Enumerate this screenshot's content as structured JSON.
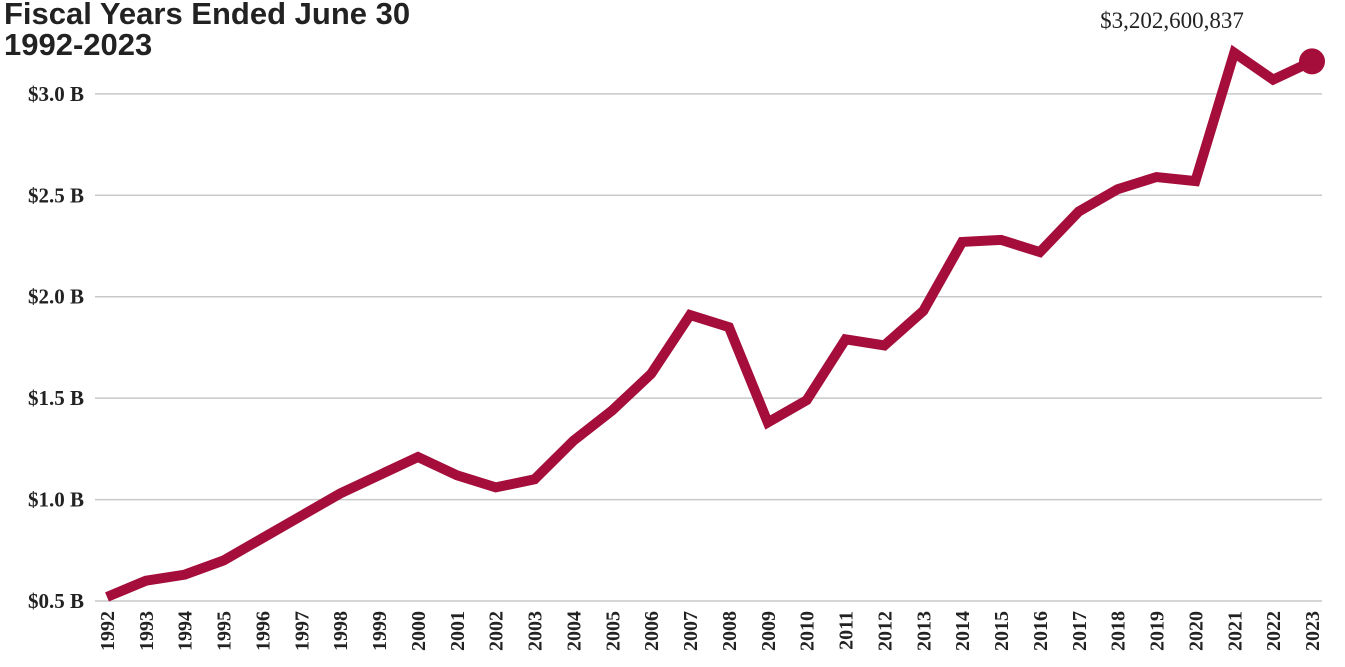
{
  "chart_data": {
    "type": "line",
    "title": "Fiscal Years Ended June 30",
    "subtitle": "1992-2023",
    "categories": [
      "1992",
      "1993",
      "1994",
      "1995",
      "1996",
      "1997",
      "1998",
      "1999",
      "2000",
      "2001",
      "2002",
      "2003",
      "2004",
      "2005",
      "2006",
      "2007",
      "2008",
      "2009",
      "2010",
      "2011",
      "2012",
      "2013",
      "2014",
      "2015",
      "2016",
      "2017",
      "2018",
      "2019",
      "2020",
      "2021",
      "2022",
      "2023"
    ],
    "values": [
      0.52,
      0.6,
      0.63,
      0.7,
      0.81,
      0.92,
      1.03,
      1.12,
      1.21,
      1.12,
      1.06,
      1.1,
      1.29,
      1.44,
      1.62,
      1.91,
      1.85,
      1.38,
      1.49,
      1.79,
      1.76,
      1.93,
      2.27,
      2.28,
      2.22,
      2.42,
      2.53,
      2.59,
      2.57,
      3.202600837,
      3.07,
      3.16
    ],
    "value_labels": [
      null,
      null,
      null,
      null,
      null,
      null,
      null,
      null,
      null,
      null,
      null,
      null,
      null,
      null,
      null,
      null,
      null,
      null,
      null,
      null,
      null,
      null,
      null,
      null,
      null,
      null,
      null,
      null,
      null,
      "$3,202,600,837",
      null,
      null
    ],
    "color": "#a50d3b",
    "ylim": [
      0.5,
      3.3
    ],
    "yticks": [
      {
        "value": 0.5,
        "label": "$0.5 B"
      },
      {
        "value": 1.0,
        "label": "$1.0 B"
      },
      {
        "value": 1.5,
        "label": "$1.5 B"
      },
      {
        "value": 2.0,
        "label": "$2.0 B"
      },
      {
        "value": 2.5,
        "label": "$2.5 B"
      },
      {
        "value": 3.0,
        "label": "$3.0 B"
      }
    ],
    "grid": true
  }
}
